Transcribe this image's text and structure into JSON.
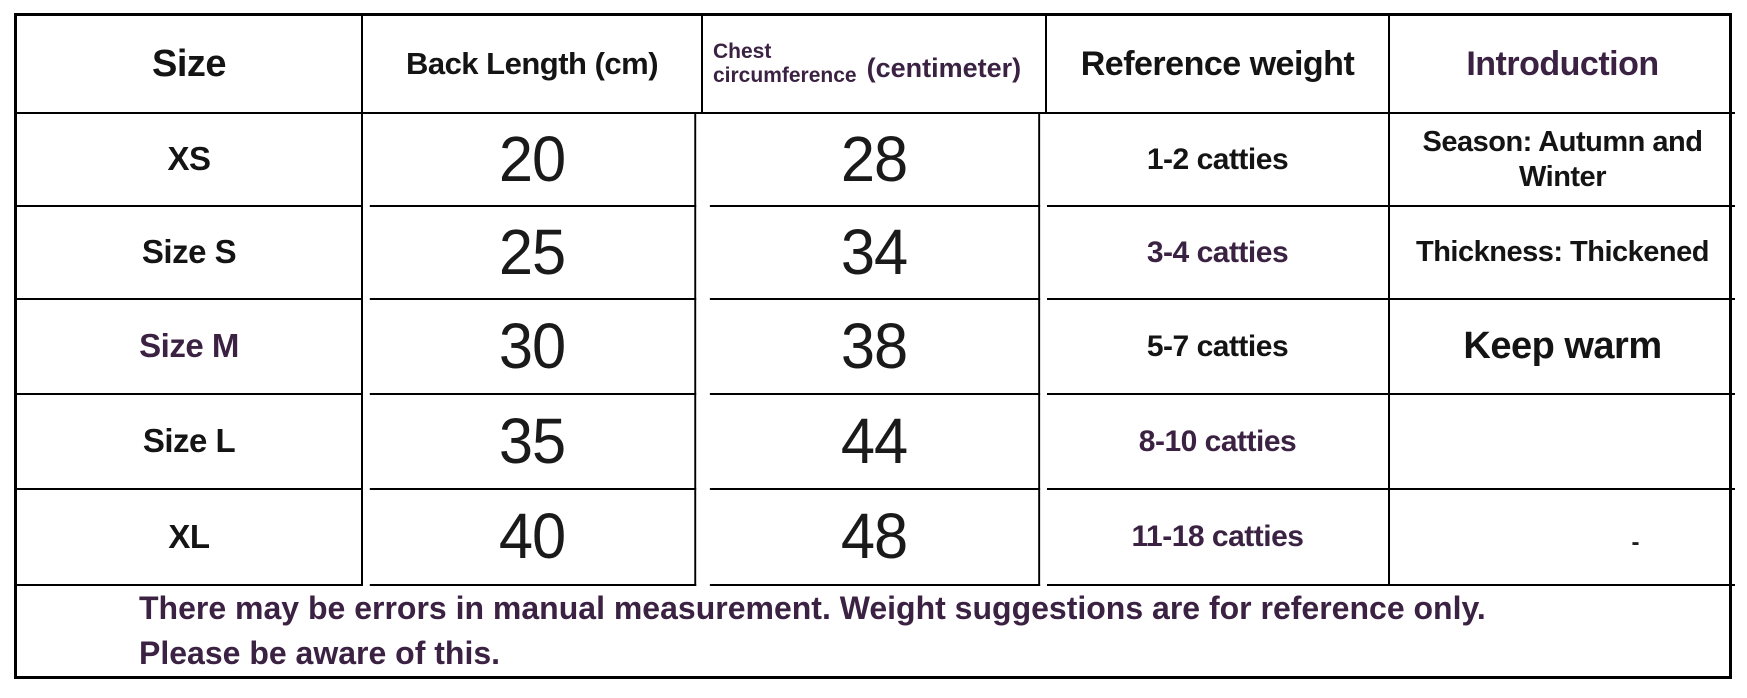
{
  "table": {
    "header": {
      "size": "Size",
      "back": "Back Length (cm)",
      "chest_line1": "Chest",
      "chest_line2": "circumference",
      "chest_suffix": "(centimeter)",
      "weight": "Reference weight",
      "intro": "Introduction"
    },
    "rows": [
      {
        "size": "XS",
        "back_length": "20",
        "chest": "28",
        "weight": "1-2 catties",
        "intro": "Season: Autumn and Winter"
      },
      {
        "size": "Size S",
        "back_length": "25",
        "chest": "34",
        "weight": "3-4 catties",
        "intro": "Thickness: Thickened"
      },
      {
        "size": "Size M",
        "back_length": "30",
        "chest": "38",
        "weight": "5-7 catties",
        "intro": "Keep warm"
      },
      {
        "size": "Size L",
        "back_length": "35",
        "chest": "44",
        "weight": "8-10 catties",
        "intro": ""
      },
      {
        "size": "XL",
        "back_length": "40",
        "chest": "48",
        "weight": "11-18 catties",
        "intro": "-"
      }
    ],
    "footer": {
      "line1": "There may be errors in manual measurement. Weight suggestions are for reference only.",
      "line2": "Please be aware of this."
    }
  },
  "colors": {
    "text_black": "#141414",
    "text_purple": "#3b2243",
    "border": "#000000",
    "background": "#ffffff"
  },
  "chart_data": {
    "type": "table",
    "title": "Pet clothing size chart",
    "columns": [
      "Size",
      "Back Length (cm)",
      "Chest circumference (centimeter)",
      "Reference weight",
      "Introduction"
    ],
    "rows": [
      [
        "XS",
        20,
        28,
        "1-2 catties",
        "Season: Autumn and Winter"
      ],
      [
        "Size S",
        25,
        34,
        "3-4 catties",
        "Thickness: Thickened"
      ],
      [
        "Size M",
        30,
        38,
        "5-7 catties",
        "Keep warm"
      ],
      [
        "Size L",
        35,
        44,
        "8-10 catties",
        ""
      ],
      [
        "XL",
        40,
        48,
        "11-18 catties",
        "-"
      ]
    ],
    "footnote": "There may be errors in manual measurement. Weight suggestions are for reference only. Please be aware of this."
  }
}
